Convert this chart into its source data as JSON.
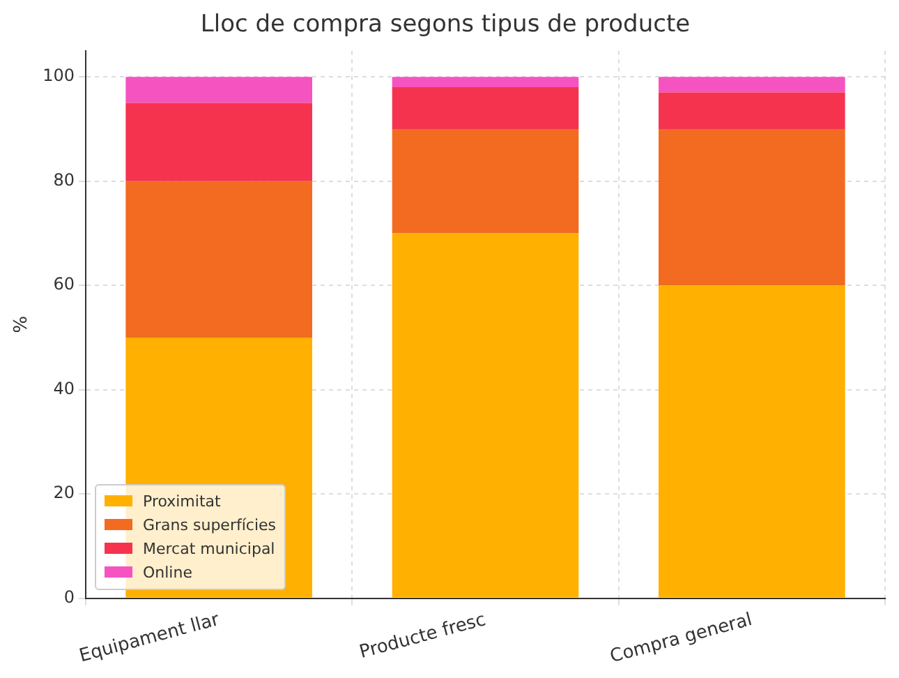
{
  "chart_data": {
    "type": "bar",
    "stacked": true,
    "title": "Lloc de compra segons tipus de producte",
    "ylabel": "%",
    "categories": [
      "Equipament llar",
      "Producte fresc",
      "Compra general"
    ],
    "series": [
      {
        "name": "Proximitat",
        "color": "#ffb000",
        "values": [
          50,
          70,
          60
        ]
      },
      {
        "name": "Grans superfícies",
        "color": "#f26b21",
        "values": [
          30,
          20,
          30
        ]
      },
      {
        "name": "Mercat municipal",
        "color": "#f5334f",
        "values": [
          15,
          8,
          7
        ]
      },
      {
        "name": "Online",
        "color": "#f553c0",
        "values": [
          5,
          2,
          3
        ]
      }
    ],
    "ylim": [
      0,
      105
    ],
    "yticks": [
      0,
      20,
      40,
      60,
      80,
      100
    ],
    "grid": true,
    "legend": "bottom left"
  }
}
